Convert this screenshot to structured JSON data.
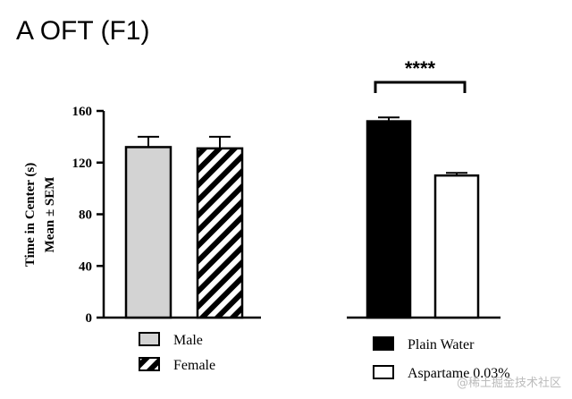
{
  "panel_label": "A OFT (F1)",
  "watermark": "@稀土掘金技术社区",
  "colors": {
    "male": "#d3d3d3",
    "plain_water": "#000000",
    "aspartame": "#ffffff",
    "stroke": "#000000"
  },
  "chart_data": [
    {
      "type": "bar",
      "title": "",
      "ylabel_line1": "Time in Center (s)",
      "ylabel_line2": "Mean ± SEM",
      "xlabel": "",
      "ylim": [
        0,
        160
      ],
      "yticks": [
        "0",
        "40",
        "80",
        "120",
        "160"
      ],
      "ytick_values": [
        0,
        40,
        80,
        120,
        160
      ],
      "categories": [
        "Male",
        "Female"
      ],
      "values": [
        132,
        131
      ],
      "errors": [
        8,
        9
      ],
      "patterns": [
        "solid-gray",
        "hatch"
      ],
      "legend": [
        "Male",
        "Female"
      ],
      "significance": ""
    },
    {
      "type": "bar",
      "title": "",
      "xlabel": "",
      "ylim": [
        0,
        160
      ],
      "categories": [
        "Plain Water",
        "Aspartame 0.03%"
      ],
      "legend_label_visible": [
        "Plain Water",
        "Aspartame 0.03%"
      ],
      "values": [
        152,
        110
      ],
      "errors": [
        3,
        2
      ],
      "patterns": [
        "solid-black",
        "open"
      ],
      "legend": [
        "Plain Water",
        "Aspartame 0.03%"
      ],
      "significance": "****"
    }
  ]
}
